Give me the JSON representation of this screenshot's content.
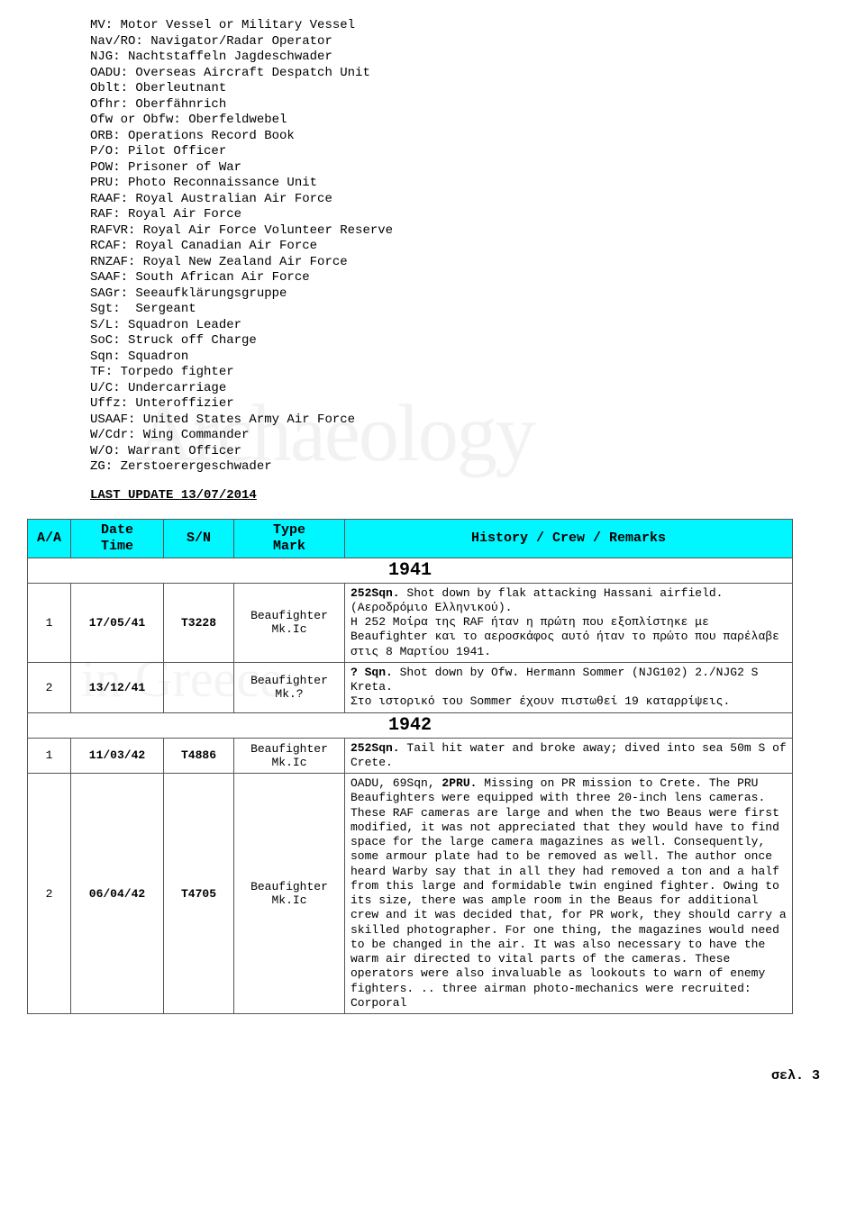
{
  "colors": {
    "header_bg": "#00f7ff",
    "border": "#555555",
    "text": "#000000",
    "bg": "#ffffff",
    "watermark": "rgba(150,150,150,0.12)"
  },
  "abbreviations": [
    "MV: Motor Vessel or Military Vessel",
    "Nav/RO: Navigator/Radar Operator",
    "NJG: Nachtstaffeln Jagdeschwader",
    "OADU: Overseas Aircraft Despatch Unit",
    "Oblt: Oberleutnant",
    "Ofhr: Oberfähnrich",
    "Ofw or Obfw: Oberfeldwebel",
    "ORB: Operations Record Book",
    "P/O: Pilot Officer",
    "POW: Prisoner of War",
    "PRU: Photo Reconnaissance Unit",
    "RAAF: Royal Australian Air Force",
    "RAF: Royal Air Force",
    "RAFVR: Royal Air Force Volunteer Reserve",
    "RCAF: Royal Canadian Air Force",
    "RNZAF: Royal New Zealand Air Force",
    "SAAF: South African Air Force",
    "SAGr: Seeaufklärungsgruppe",
    "Sgt:  Sergeant",
    "S/L: Squadron Leader",
    "SoC: Struck off Charge",
    "Sqn: Squadron",
    "TF: Torpedo fighter",
    "U/C: Undercarriage",
    "Uffz: Unteroffizier",
    "USAAF: United States Army Air Force",
    "W/Cdr: Wing Commander",
    "W/O: Warrant Officer",
    "ZG: Zerstoerergeschwader"
  ],
  "last_update": "LAST UPDATE 13/07/2014",
  "headers": {
    "aa": "A/A",
    "date1": "Date",
    "date2": "Time",
    "sn": "S/N",
    "type1": "Type",
    "type2": "Mark",
    "hist": "History / Crew / Remarks"
  },
  "years": {
    "y1941": "1941",
    "y1942": "1942"
  },
  "rows": {
    "r1941_1": {
      "aa": "1",
      "date": "17/05/41",
      "sn": "T3228",
      "type": "Beaufighter Mk.Ic",
      "hist_html": "<b>252Sqn.</b> Shot down by flak attacking Hassani airfield. (Αεροδρόμιο Ελληνικού).<br>Η 252 Μοίρα της RAF ήταν η πρώτη που εξοπλίστηκε με Beaufighter και το αεροσκάφος αυτό ήταν το πρώτο που παρέλαβε στις 8 Μαρτίου 1941."
    },
    "r1941_2": {
      "aa": "2",
      "date": "13/12/41",
      "sn": "",
      "type": "Beaufighter Mk.?",
      "hist_html": "<b>? Sqn.</b> Shot down by Ofw. Hermann Sommer (NJG102) 2./NJG2 S Kreta.<br>Στο ιστορικό του Sommer έχουν πιστωθεί 19 καταρρίψεις."
    },
    "r1942_1": {
      "aa": "1",
      "date": "11/03/42",
      "sn": "T4886",
      "type": "Beaufighter Mk.Ic",
      "hist_html": "<b>252Sqn.</b> Tail hit water and broke away; dived into sea 50m S of Crete."
    },
    "r1942_2": {
      "aa": "2",
      "date": "06/04/42",
      "sn": "T4705",
      "type": "Beaufighter Mk.Ic",
      "hist_html": "OADU, 69Sqn, <b>2PRU.</b> Missing on PR mission to Crete. The PRU Beaufighters were equipped with three 20-inch lens cameras. These RAF cameras are large and when the two Beaus were first modified, it was not appreciated that they would have to find space for the large camera magazines as well. Consequently, some armour plate had to be removed as well. The author once heard Warby say that in all they had removed a ton and a half from this large and formidable twin engined fighter. Owing to its size, there was ample room in the Beaus for additional crew and it was decided that, for PR work, they should carry a skilled photographer. For one thing, the magazines would need to be changed in the air. It was also necessary to have the warm air directed to vital parts of the cameras. These operators were also invaluable as lookouts to warn of enemy fighters. .. three airman photo-mechanics were recruited: Corporal"
    }
  },
  "footer": "σελ. 3",
  "watermark1": "Archaeology",
  "watermark2": "in Greece"
}
